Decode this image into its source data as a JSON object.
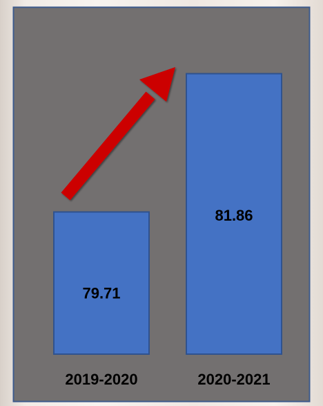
{
  "chart_data": {
    "type": "bar",
    "categories": [
      "2019-2020",
      "2020-2021"
    ],
    "values": [
      79.71,
      81.86
    ],
    "value_labels": [
      "79.71",
      "81.86"
    ],
    "title": "",
    "xlabel": "",
    "ylabel": "",
    "grid": false,
    "legend": "none",
    "annotation": "red arrow pointing upward from first bar toward second bar"
  },
  "colors": {
    "panel_background": "#737070",
    "panel_border": "#3d5a8c",
    "bar_fill": "#4472c4",
    "bar_border": "#2f528f",
    "arrow": "#cc0000",
    "text": "#000000"
  }
}
